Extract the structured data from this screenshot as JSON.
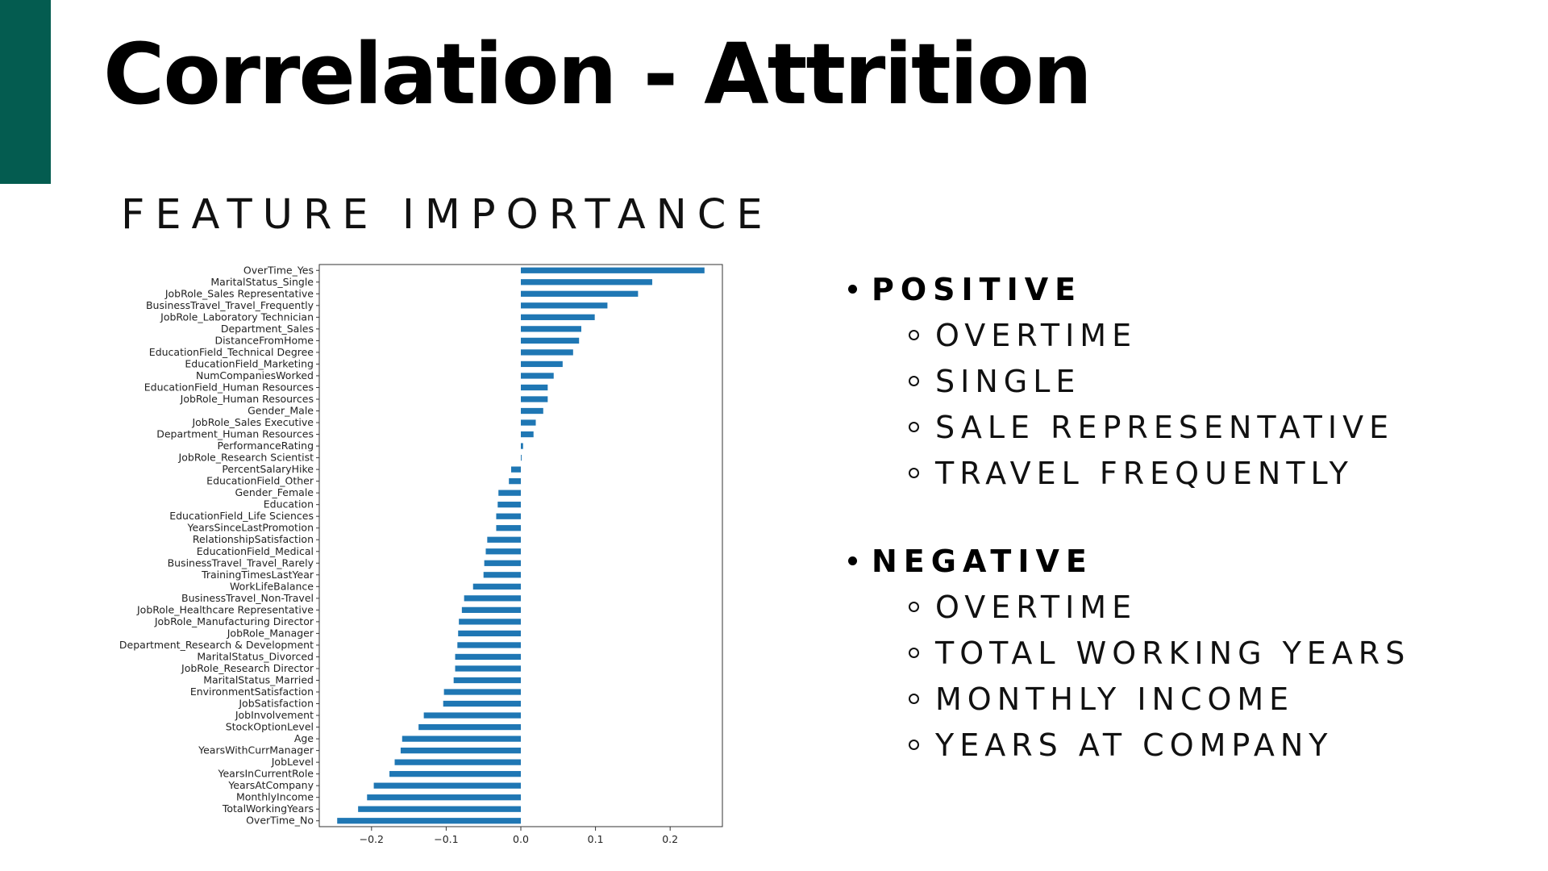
{
  "slide": {
    "title": "Correlation - Attrition",
    "subtitle": "FEATURE IMPORTANCE",
    "accent_color": "#045c50"
  },
  "bullets": {
    "positive": {
      "title": "POSITIVE",
      "items": [
        "OVERTIME",
        "SINGLE",
        "SALE REPRESENTATIVE",
        "TRAVEL FREQUENTLY"
      ]
    },
    "negative": {
      "title": "NEGATIVE",
      "items": [
        "OVERTIME",
        "TOTAL WORKING YEARS",
        "MONTHLY INCOME",
        "YEARS AT COMPANY"
      ]
    }
  },
  "chart_data": {
    "type": "bar",
    "orientation": "horizontal",
    "bar_color": "#1f77b4",
    "xlim": [
      -0.27,
      0.27
    ],
    "xticks": [
      -0.2,
      -0.1,
      0.0,
      0.1,
      0.2
    ],
    "xtick_labels": [
      "−0.2",
      "−0.1",
      "0.0",
      "0.1",
      "0.2"
    ],
    "categories": [
      "OverTime_Yes",
      "MaritalStatus_Single",
      "JobRole_Sales Representative",
      "BusinessTravel_Travel_Frequently",
      "JobRole_Laboratory Technician",
      "Department_Sales",
      "DistanceFromHome",
      "EducationField_Technical Degree",
      "EducationField_Marketing",
      "NumCompaniesWorked",
      "EducationField_Human Resources",
      "JobRole_Human Resources",
      "Gender_Male",
      "JobRole_Sales Executive",
      "Department_Human Resources",
      "PerformanceRating",
      "JobRole_Research Scientist",
      "PercentSalaryHike",
      "EducationField_Other",
      "Gender_Female",
      "Education",
      "EducationField_Life Sciences",
      "YearsSinceLastPromotion",
      "RelationshipSatisfaction",
      "EducationField_Medical",
      "BusinessTravel_Travel_Rarely",
      "TrainingTimesLastYear",
      "WorkLifeBalance",
      "BusinessTravel_Non-Travel",
      "JobRole_Healthcare Representative",
      "JobRole_Manufacturing Director",
      "JobRole_Manager",
      "Department_Research & Development",
      "MaritalStatus_Divorced",
      "JobRole_Research Director",
      "MaritalStatus_Married",
      "EnvironmentSatisfaction",
      "JobSatisfaction",
      "JobInvolvement",
      "StockOptionLevel",
      "Age",
      "YearsWithCurrManager",
      "JobLevel",
      "YearsInCurrentRole",
      "YearsAtCompany",
      "MonthlyIncome",
      "TotalWorkingYears",
      "OverTime_No"
    ],
    "values": [
      0.246,
      0.176,
      0.157,
      0.116,
      0.099,
      0.081,
      0.078,
      0.07,
      0.056,
      0.044,
      0.036,
      0.036,
      0.03,
      0.02,
      0.017,
      0.003,
      0.001,
      -0.013,
      -0.016,
      -0.03,
      -0.031,
      -0.033,
      -0.033,
      -0.045,
      -0.047,
      -0.049,
      -0.05,
      -0.064,
      -0.076,
      -0.079,
      -0.083,
      -0.084,
      -0.085,
      -0.088,
      -0.088,
      -0.09,
      -0.103,
      -0.104,
      -0.13,
      -0.137,
      -0.159,
      -0.161,
      -0.169,
      -0.176,
      -0.197,
      -0.206,
      -0.218,
      -0.246
    ]
  }
}
